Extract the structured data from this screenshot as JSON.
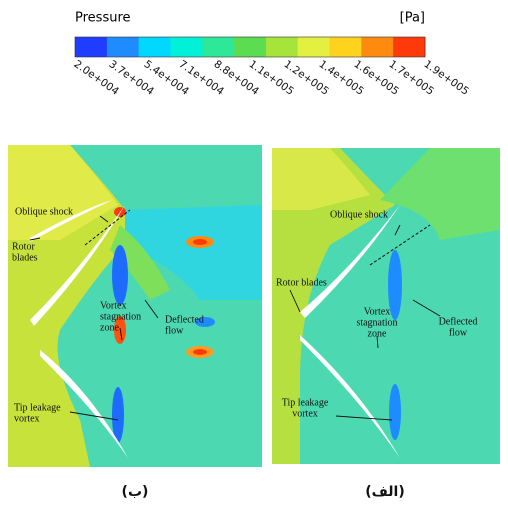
{
  "colorbar": {
    "title": "Pressure",
    "unit": "[Pa]",
    "colors": [
      "#1f3cff",
      "#1e8cff",
      "#00d8ff",
      "#00f0d8",
      "#2ee89a",
      "#5cdc50",
      "#a6e43a",
      "#e4f040",
      "#ffd21e",
      "#ff8a10",
      "#ff3a0a"
    ],
    "labels": [
      "2.0e+004",
      "3.7e+004",
      "5.4e+004",
      "7.1e+004",
      "8.8e+004",
      "1.1e+005",
      "1.2e+005",
      "1.4e+005",
      "1.6e+005",
      "1.7e+005",
      "1.9e+005"
    ]
  },
  "panels": [
    {
      "label": "(ب)",
      "annotations": [
        [
          "Oblique shock"
        ],
        [
          "Rotor",
          "blades"
        ],
        [
          "Vortex",
          "stagnation",
          "zone"
        ],
        [
          "Deflected",
          "flow"
        ],
        [
          "Tip leakage",
          "vortex"
        ]
      ]
    },
    {
      "label": "(الف)",
      "annotations": [
        [
          "Oblique shock"
        ],
        [
          "Rotor blades"
        ],
        [
          "Vortex",
          "stagnation",
          "zone"
        ],
        [
          "Deflected",
          "flow"
        ],
        [
          "Tip leakage",
          "vortex"
        ]
      ]
    }
  ]
}
